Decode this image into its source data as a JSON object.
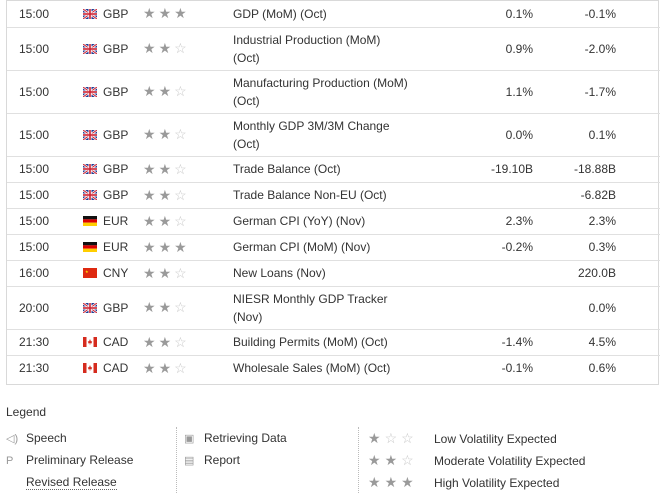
{
  "events": [
    {
      "time": "15:00",
      "flag": "gb",
      "currency": "GBP",
      "stars": 3,
      "event_lines": [
        "GDP (MoM) (Oct)"
      ],
      "actual": "0.1%",
      "forecast": "-0.1%"
    },
    {
      "time": "15:00",
      "flag": "gb",
      "currency": "GBP",
      "stars": 2,
      "event_lines": [
        "Industrial Production (MoM)",
        "(Oct)"
      ],
      "actual": "0.9%",
      "forecast": "-2.0%"
    },
    {
      "time": "15:00",
      "flag": "gb",
      "currency": "GBP",
      "stars": 2,
      "event_lines": [
        "Manufacturing Production (MoM)",
        "(Oct)"
      ],
      "actual": "1.1%",
      "forecast": "-1.7%"
    },
    {
      "time": "15:00",
      "flag": "gb",
      "currency": "GBP",
      "stars": 2,
      "event_lines": [
        "Monthly GDP 3M/3M Change",
        "(Oct)"
      ],
      "actual": "0.0%",
      "forecast": "0.1%"
    },
    {
      "time": "15:00",
      "flag": "gb",
      "currency": "GBP",
      "stars": 2,
      "event_lines": [
        "Trade Balance (Oct)"
      ],
      "actual": "-19.10B",
      "forecast": "-18.88B"
    },
    {
      "time": "15:00",
      "flag": "gb",
      "currency": "GBP",
      "stars": 2,
      "event_lines": [
        "Trade Balance Non-EU (Oct)"
      ],
      "actual": "",
      "forecast": "-6.82B"
    },
    {
      "time": "15:00",
      "flag": "de",
      "currency": "EUR",
      "stars": 2,
      "event_lines": [
        "German CPI (YoY) (Nov)"
      ],
      "actual": "2.3%",
      "forecast": "2.3%"
    },
    {
      "time": "15:00",
      "flag": "de",
      "currency": "EUR",
      "stars": 3,
      "event_lines": [
        "German CPI (MoM) (Nov)"
      ],
      "actual": "-0.2%",
      "forecast": "0.3%"
    },
    {
      "time": "16:00",
      "flag": "cn",
      "currency": "CNY",
      "stars": 2,
      "event_lines": [
        "New Loans (Nov)"
      ],
      "actual": "",
      "forecast": "220.0B"
    },
    {
      "time": "20:00",
      "flag": "gb",
      "currency": "GBP",
      "stars": 2,
      "event_lines": [
        "NIESR Monthly GDP Tracker",
        "(Nov)"
      ],
      "actual": "",
      "forecast": "0.0%"
    },
    {
      "time": "21:30",
      "flag": "ca",
      "currency": "CAD",
      "stars": 2,
      "event_lines": [
        "Building Permits (MoM) (Oct)"
      ],
      "actual": "-1.4%",
      "forecast": "4.5%"
    },
    {
      "time": "21:30",
      "flag": "ca",
      "currency": "CAD",
      "stars": 2,
      "event_lines": [
        "Wholesale Sales (MoM) (Oct)"
      ],
      "actual": "-0.1%",
      "forecast": "0.6%"
    }
  ],
  "legend": {
    "title": "Legend",
    "col1": [
      {
        "icon": "speaker-icon",
        "glyph": "◁)",
        "label": "Speech"
      },
      {
        "icon": "preliminary-icon",
        "glyph": "P",
        "label": "Preliminary Release"
      },
      {
        "icon": "",
        "glyph": "",
        "label": "Revised Release"
      }
    ],
    "col2": [
      {
        "icon": "retrieving-data-icon",
        "glyph": "▣",
        "label": "Retrieving Data"
      },
      {
        "icon": "report-icon",
        "glyph": "▤",
        "label": "Report"
      }
    ],
    "col3": [
      {
        "stars": 1,
        "label": "Low Volatility Expected"
      },
      {
        "stars": 2,
        "label": "Moderate Volatility Expected"
      },
      {
        "stars": 3,
        "label": "High Volatility Expected"
      }
    ]
  },
  "colors": {
    "star_on": "#9a9a9a",
    "star_off": "#c8c8c8",
    "border": "#d9d9d9"
  }
}
